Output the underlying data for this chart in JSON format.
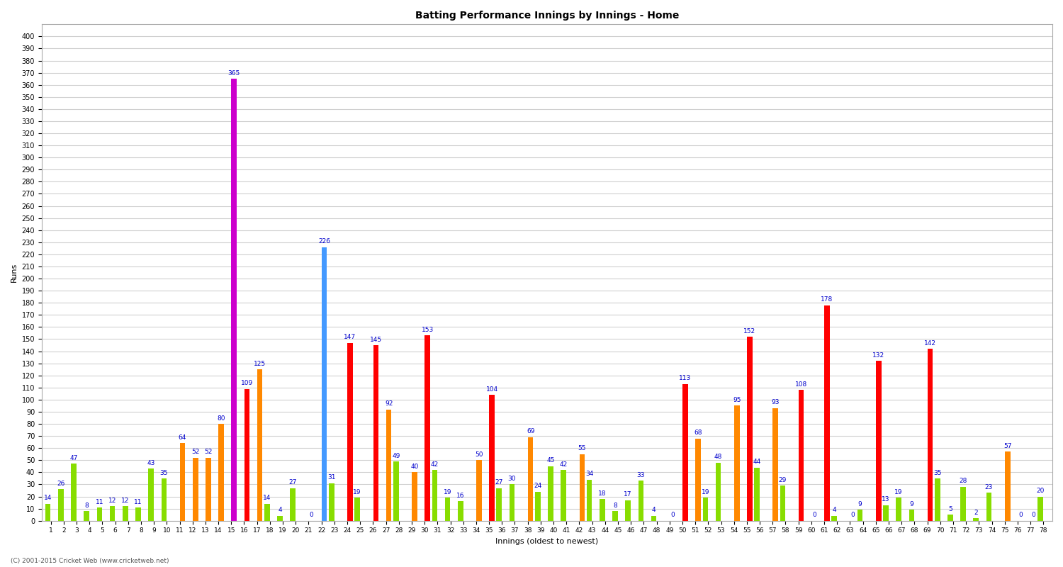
{
  "title": "Batting Performance Innings by Innings - Home",
  "xlabel": "Innings (oldest to newest)",
  "ylabel": "Runs",
  "footer": "(C) 2001-2015 Cricket Web (www.cricketweb.net)",
  "ylim": [
    0,
    410
  ],
  "ytick_step": 10,
  "bg_color": "#ffffff",
  "grid_color": "#d0d0d0",
  "label_color": "#0000cc",
  "label_fontsize": 6.5,
  "title_fontsize": 10,
  "axis_label_fontsize": 8,
  "tick_fontsize": 7,
  "innings": [
    {
      "label": "1",
      "green": 14,
      "score": 0,
      "score_color": "none"
    },
    {
      "label": "2",
      "green": 26,
      "score": 0,
      "score_color": "none"
    },
    {
      "label": "3",
      "green": 47,
      "score": 0,
      "score_color": "none"
    },
    {
      "label": "4",
      "green": 8,
      "score": 0,
      "score_color": "none"
    },
    {
      "label": "5",
      "green": 11,
      "score": 0,
      "score_color": "none"
    },
    {
      "label": "6",
      "green": 12,
      "score": 0,
      "score_color": "none"
    },
    {
      "label": "7",
      "green": 12,
      "score": 0,
      "score_color": "none"
    },
    {
      "label": "8",
      "green": 11,
      "score": 0,
      "score_color": "none"
    },
    {
      "label": "9",
      "green": 43,
      "score": 0,
      "score_color": "none"
    },
    {
      "label": "10",
      "green": 35,
      "score": 0,
      "score_color": "none"
    },
    {
      "label": "11",
      "green": 0,
      "score": 64,
      "score_color": "#ff8800"
    },
    {
      "label": "12",
      "green": 0,
      "score": 52,
      "score_color": "#ff8800"
    },
    {
      "label": "13",
      "green": 0,
      "score": 52,
      "score_color": "#ff8800"
    },
    {
      "label": "14",
      "green": 0,
      "score": 80,
      "score_color": "#ff8800"
    },
    {
      "label": "15",
      "green": 0,
      "score": 365,
      "score_color": "#cc00cc"
    },
    {
      "label": "16",
      "green": 0,
      "score": 109,
      "score_color": "#ff0000"
    },
    {
      "label": "17",
      "green": 0,
      "score": 125,
      "score_color": "#ff8800"
    },
    {
      "label": "18",
      "green": 14,
      "score": 0,
      "score_color": "none"
    },
    {
      "label": "19",
      "green": 4,
      "score": 0,
      "score_color": "none"
    },
    {
      "label": "20",
      "green": 27,
      "score": 0,
      "score_color": "none"
    },
    {
      "label": "21",
      "green": 0,
      "score": 0,
      "score_color": "none",
      "special": 0
    },
    {
      "label": "22",
      "green": 0,
      "score": 226,
      "score_color": "#4499ff"
    },
    {
      "label": "23",
      "green": 31,
      "score": 0,
      "score_color": "none"
    },
    {
      "label": "24",
      "green": 0,
      "score": 147,
      "score_color": "#ff0000"
    },
    {
      "label": "25",
      "green": 19,
      "score": 0,
      "score_color": "none"
    },
    {
      "label": "26",
      "green": 0,
      "score": 145,
      "score_color": "#ff0000"
    },
    {
      "label": "27",
      "green": 0,
      "score": 92,
      "score_color": "#ff8800"
    },
    {
      "label": "28",
      "green": 49,
      "score": 0,
      "score_color": "none"
    },
    {
      "label": "29",
      "green": 0,
      "score": 40,
      "score_color": "#ff8800"
    },
    {
      "label": "30",
      "green": 0,
      "score": 153,
      "score_color": "#ff0000"
    },
    {
      "label": "31",
      "green": 42,
      "score": 0,
      "score_color": "none"
    },
    {
      "label": "32",
      "green": 19,
      "score": 0,
      "score_color": "none"
    },
    {
      "label": "33",
      "green": 16,
      "score": 0,
      "score_color": "none"
    },
    {
      "label": "34",
      "green": 0,
      "score": 50,
      "score_color": "#ff8800"
    },
    {
      "label": "35",
      "green": 0,
      "score": 104,
      "score_color": "#ff0000"
    },
    {
      "label": "36",
      "green": 27,
      "score": 0,
      "score_color": "none"
    },
    {
      "label": "37",
      "green": 30,
      "score": 0,
      "score_color": "none"
    },
    {
      "label": "38",
      "green": 0,
      "score": 69,
      "score_color": "#ff8800"
    },
    {
      "label": "39",
      "green": 24,
      "score": 0,
      "score_color": "none"
    },
    {
      "label": "40",
      "green": 45,
      "score": 0,
      "score_color": "none"
    },
    {
      "label": "41",
      "green": 42,
      "score": 0,
      "score_color": "none"
    },
    {
      "label": "42",
      "green": 0,
      "score": 55,
      "score_color": "#ff8800"
    },
    {
      "label": "43",
      "green": 34,
      "score": 0,
      "score_color": "none"
    },
    {
      "label": "44",
      "green": 18,
      "score": 0,
      "score_color": "none"
    },
    {
      "label": "45",
      "green": 8,
      "score": 0,
      "score_color": "none"
    },
    {
      "label": "46",
      "green": 17,
      "score": 0,
      "score_color": "none"
    },
    {
      "label": "47",
      "green": 33,
      "score": 0,
      "score_color": "none"
    },
    {
      "label": "48",
      "green": 4,
      "score": 0,
      "score_color": "none"
    },
    {
      "label": "49",
      "green": 0,
      "score": 0,
      "score_color": "none",
      "special": 0
    },
    {
      "label": "50",
      "green": 0,
      "score": 113,
      "score_color": "#ff0000"
    },
    {
      "label": "51",
      "green": 0,
      "score": 68,
      "score_color": "#ff8800"
    },
    {
      "label": "52",
      "green": 19,
      "score": 0,
      "score_color": "none"
    },
    {
      "label": "53",
      "green": 48,
      "score": 0,
      "score_color": "none"
    },
    {
      "label": "54",
      "green": 0,
      "score": 95,
      "score_color": "#ff8800"
    },
    {
      "label": "55",
      "green": 0,
      "score": 152,
      "score_color": "#ff0000"
    },
    {
      "label": "56",
      "green": 44,
      "score": 0,
      "score_color": "none"
    },
    {
      "label": "57",
      "green": 0,
      "score": 93,
      "score_color": "#ff8800"
    },
    {
      "label": "58",
      "green": 29,
      "score": 0,
      "score_color": "none"
    },
    {
      "label": "59",
      "green": 0,
      "score": 108,
      "score_color": "#ff0000"
    },
    {
      "label": "60",
      "green": 0,
      "score": 0,
      "score_color": "none",
      "special": 0
    },
    {
      "label": "61",
      "green": 0,
      "score": 178,
      "score_color": "#ff0000"
    },
    {
      "label": "62",
      "green": 4,
      "score": 0,
      "score_color": "none"
    },
    {
      "label": "63",
      "green": 0,
      "score": 0,
      "score_color": "none",
      "special": 0
    },
    {
      "label": "64",
      "green": 9,
      "score": 0,
      "score_color": "none"
    },
    {
      "label": "65",
      "green": 0,
      "score": 132,
      "score_color": "#ff0000"
    },
    {
      "label": "66",
      "green": 13,
      "score": 0,
      "score_color": "none"
    },
    {
      "label": "67",
      "green": 19,
      "score": 0,
      "score_color": "none"
    },
    {
      "label": "68",
      "green": 9,
      "score": 0,
      "score_color": "none"
    },
    {
      "label": "69",
      "green": 0,
      "score": 142,
      "score_color": "#ff0000"
    },
    {
      "label": "70",
      "green": 35,
      "score": 0,
      "score_color": "none"
    },
    {
      "label": "71",
      "green": 5,
      "score": 0,
      "score_color": "none"
    },
    {
      "label": "72",
      "green": 28,
      "score": 0,
      "score_color": "none"
    },
    {
      "label": "73",
      "green": 2,
      "score": 0,
      "score_color": "none"
    },
    {
      "label": "74",
      "green": 23,
      "score": 0,
      "score_color": "none"
    },
    {
      "label": "75",
      "green": 0,
      "score": 57,
      "score_color": "#ff8800"
    },
    {
      "label": "76",
      "green": 0,
      "score": 0,
      "score_color": "none",
      "special": 0
    },
    {
      "label": "77",
      "green": 0,
      "score": 0,
      "score_color": "none",
      "special": 0
    },
    {
      "label": "78",
      "green": 20,
      "score": 0,
      "score_color": "none"
    }
  ]
}
